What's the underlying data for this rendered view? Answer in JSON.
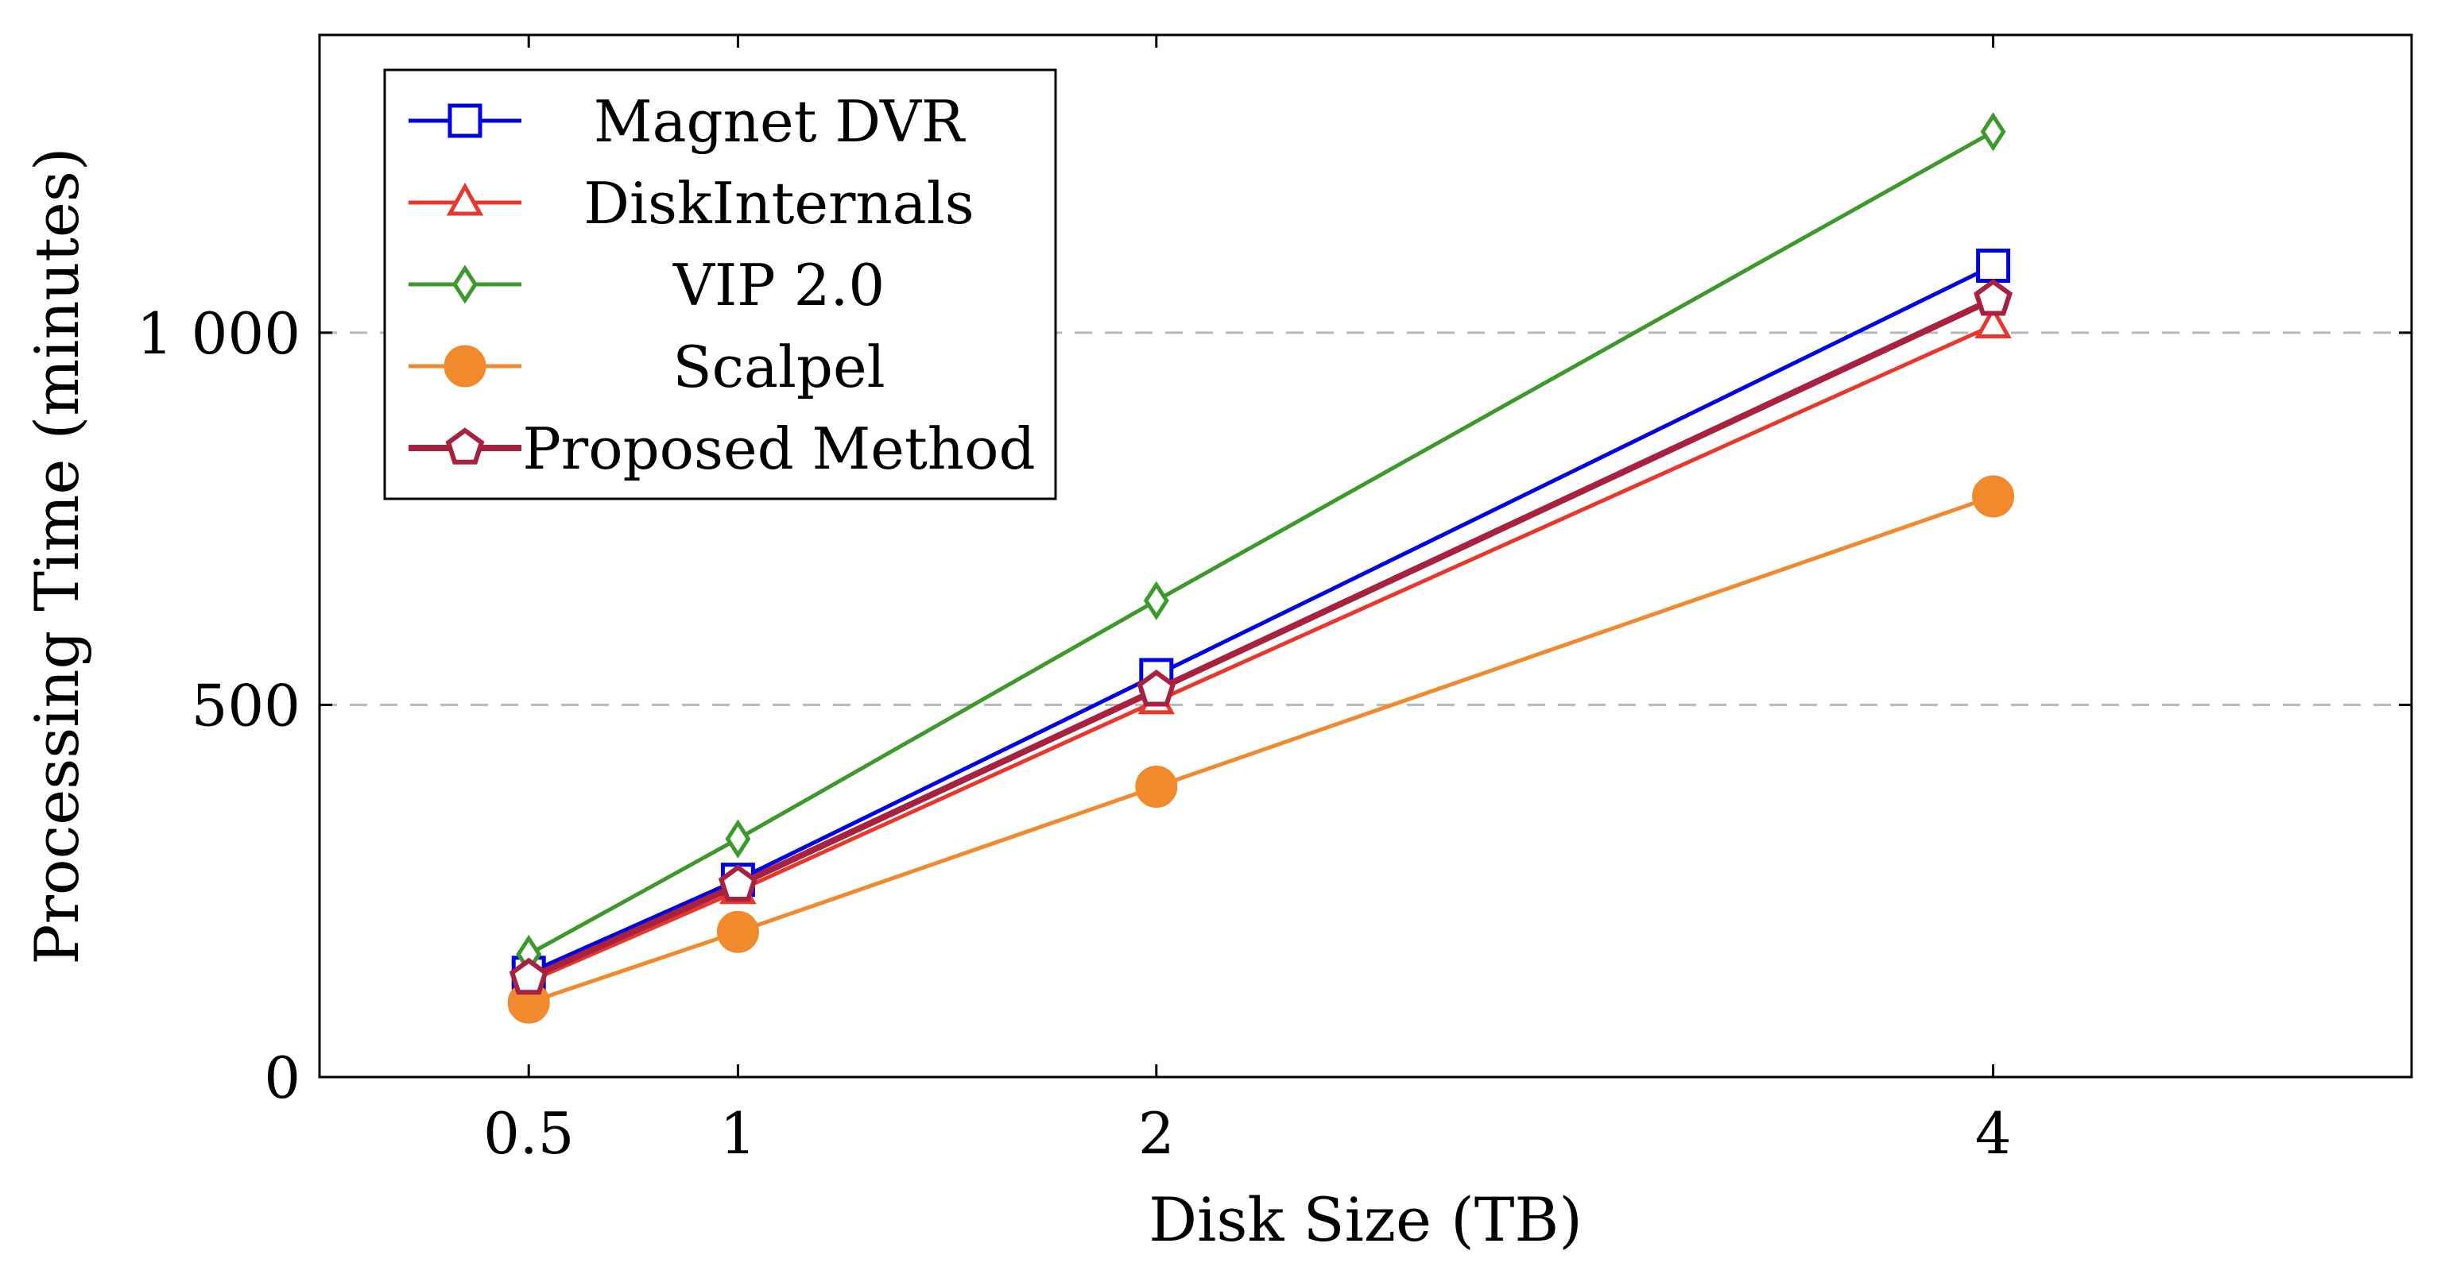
{
  "chart_data": {
    "type": "line",
    "title": "",
    "xlabel": "Disk Size (TB)",
    "ylabel": "Processing Time (minutes)",
    "x": [
      0.5,
      1,
      2,
      4
    ],
    "x_tick_labels": [
      "0.5",
      "1",
      "2",
      "4"
    ],
    "xlim": [
      0,
      5
    ],
    "ylim": [
      0,
      1400
    ],
    "y_ticks": [
      0,
      500,
      1000
    ],
    "y_tick_labels": [
      "0",
      "500",
      "1 000"
    ],
    "grid": "horizontal dashed at y ticks",
    "legend_position": "top-left",
    "series": [
      {
        "name": "Magnet DVR",
        "color": "#0000e6",
        "marker": "square",
        "values": [
          140,
          265,
          540,
          1090
        ]
      },
      {
        "name": "DiskInternals",
        "color": "#e8372c",
        "marker": "triangle",
        "values": [
          128,
          250,
          505,
          1010
        ]
      },
      {
        "name": "VIP 2.0",
        "color": "#3c9a2b",
        "marker": "diamond",
        "values": [
          165,
          320,
          640,
          1270
        ]
      },
      {
        "name": "Scalpel",
        "color": "#f08a2c",
        "marker": "circle",
        "values": [
          100,
          195,
          390,
          780
        ]
      },
      {
        "name": "Proposed Method",
        "color": "#a8213f",
        "marker": "pentagon",
        "values": [
          133,
          258,
          520,
          1045
        ]
      }
    ]
  }
}
